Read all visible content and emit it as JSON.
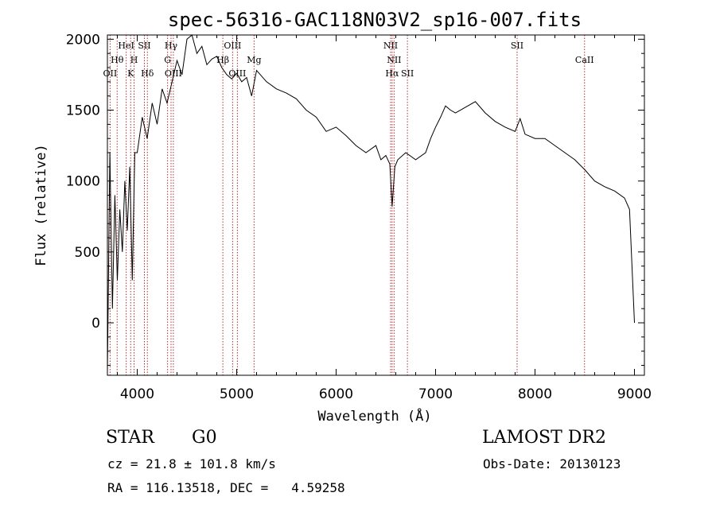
{
  "chart_data": {
    "type": "line",
    "title": "spec-56316-GAC118N03V2_sp16-007.fits",
    "xlabel": "Wavelength (Å)",
    "ylabel": "Flux (relative)",
    "xlim": [
      3700,
      9100
    ],
    "ylim": [
      -370,
      2030
    ],
    "xticks": [
      4000,
      5000,
      6000,
      7000,
      8000,
      9000
    ],
    "yticks": [
      0,
      500,
      1000,
      1500,
      2000
    ],
    "grid": false,
    "series": [
      {
        "x": [
          3700,
          3725,
          3750,
          3775,
          3800,
          3825,
          3850,
          3875,
          3900,
          3925,
          3950,
          3975,
          4000,
          4050,
          4100,
          4150,
          4200,
          4250,
          4300,
          4350,
          4400,
          4450,
          4500,
          4550,
          4600,
          4650,
          4700,
          4750,
          4800,
          4850,
          4900,
          4950,
          5000,
          5050,
          5100,
          5150,
          5200,
          5300,
          5400,
          5500,
          5600,
          5700,
          5800,
          5900,
          6000,
          6100,
          6200,
          6300,
          6400,
          6450,
          6500,
          6540,
          6563,
          6590,
          6620,
          6700,
          6800,
          6900,
          6950,
          7000,
          7050,
          7100,
          7150,
          7200,
          7300,
          7400,
          7500,
          7600,
          7700,
          7800,
          7850,
          7900,
          8000,
          8100,
          8200,
          8300,
          8400,
          8500,
          8600,
          8700,
          8800,
          8900,
          8950,
          9000
        ],
        "y": [
          -350,
          1200,
          100,
          900,
          300,
          800,
          500,
          1000,
          650,
          1100,
          300,
          1200,
          1200,
          1450,
          1300,
          1550,
          1400,
          1650,
          1550,
          1700,
          1850,
          1750,
          2000,
          2030,
          1900,
          1950,
          1820,
          1860,
          1880,
          1800,
          1750,
          1720,
          1760,
          1700,
          1730,
          1600,
          1780,
          1700,
          1650,
          1620,
          1580,
          1500,
          1450,
          1350,
          1380,
          1320,
          1250,
          1200,
          1250,
          1150,
          1180,
          1120,
          820,
          1100,
          1150,
          1200,
          1150,
          1200,
          1300,
          1380,
          1450,
          1530,
          1500,
          1480,
          1520,
          1560,
          1480,
          1420,
          1380,
          1350,
          1440,
          1330,
          1300,
          1300,
          1250,
          1200,
          1150,
          1080,
          1000,
          960,
          930,
          880,
          800,
          0
        ]
      }
    ],
    "spectral_lines": [
      {
        "label": "OII",
        "wavelength": 3727,
        "row": 3
      },
      {
        "label": "Hθ",
        "wavelength": 3798,
        "row": 2
      },
      {
        "label": "HeI",
        "wavelength": 3889,
        "row": 1
      },
      {
        "label": "K",
        "wavelength": 3934,
        "row": 3
      },
      {
        "label": "H",
        "wavelength": 3968,
        "row": 2
      },
      {
        "label": "SII",
        "wavelength": 4072,
        "row": 1
      },
      {
        "label": "Hδ",
        "wavelength": 4102,
        "row": 3
      },
      {
        "label": "Hγ",
        "wavelength": 4340,
        "row": 1
      },
      {
        "label": "G",
        "wavelength": 4305,
        "row": 2
      },
      {
        "label": "OIII",
        "wavelength": 4363,
        "row": 3
      },
      {
        "label": "Hβ",
        "wavelength": 4861,
        "row": 2
      },
      {
        "label": "OIII",
        "wavelength": 4959,
        "row": 1
      },
      {
        "label": "OIII",
        "wavelength": 5007,
        "row": 3
      },
      {
        "label": "Mg",
        "wavelength": 5175,
        "row": 2
      },
      {
        "label": "NII",
        "wavelength": 6548,
        "row": 1
      },
      {
        "label": "NII",
        "wavelength": 6583,
        "row": 2
      },
      {
        "label": "Hα",
        "wavelength": 6563,
        "row": 3
      },
      {
        "label": "SII",
        "wavelength": 6717,
        "row": 3
      },
      {
        "label": "SII",
        "wavelength": 7820,
        "row": 1
      },
      {
        "label": "CaII",
        "wavelength": 8498,
        "row": 2
      }
    ],
    "colors": {
      "line": "#000000",
      "marker": "#b03030"
    }
  },
  "info": {
    "object_class": "STAR",
    "subclass": "G0",
    "survey": "LAMOST DR2",
    "redshift": "cz = 21.8 ± 101.8 km/s",
    "obs_date": "Obs-Date: 20130123",
    "coords": "RA = 116.13518, DEC =   4.59258"
  }
}
